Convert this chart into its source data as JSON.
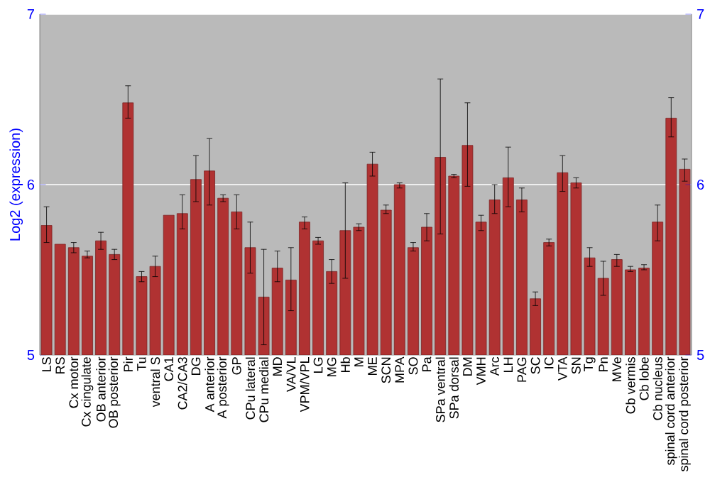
{
  "chart_data": {
    "type": "bar",
    "ylabel": "Log2 (expression)",
    "color": "#b03232",
    "grid": "y",
    "categories": [
      "LS",
      "RS",
      "Cx motor",
      "Cx cingulate",
      "OB anterior",
      "OB posterior",
      "Pir",
      "Tu",
      "ventral S",
      "CA1",
      "CA2/CA3",
      "DG",
      "A anterior",
      "A posterior",
      "GP",
      "CPu lateral",
      "CPu medial",
      "MD",
      "VA/VL",
      "VPM/VPL",
      "LG",
      "MG",
      "Hb",
      "M",
      "ME",
      "SCN",
      "MPA",
      "SO",
      "Pa",
      "SPa ventral",
      "SPa dorsal",
      "DM",
      "VMH",
      "Arc",
      "LH",
      "PAG",
      "SC",
      "IC",
      "VTA",
      "SN",
      "Tg",
      "Pn",
      "MVe",
      "Cb vermis",
      "Cb lobe",
      "Cb nucleus",
      "spinal cord anterior",
      "spinal cord posterior"
    ],
    "values": [
      5.76,
      5.65,
      5.63,
      5.58,
      5.67,
      5.59,
      6.48,
      5.46,
      5.52,
      5.82,
      5.83,
      6.03,
      6.08,
      5.92,
      5.84,
      5.63,
      5.34,
      5.51,
      5.44,
      5.78,
      5.67,
      5.49,
      5.73,
      5.75,
      6.12,
      5.85,
      6.0,
      5.63,
      5.75,
      6.16,
      6.05,
      6.23,
      5.78,
      5.91,
      6.04,
      5.91,
      5.33,
      5.66,
      6.07,
      6.01,
      5.57,
      5.45,
      5.56,
      5.5,
      5.51,
      5.78,
      6.39,
      6.09
    ],
    "errors": [
      [
        5.66,
        5.87
      ],
      null,
      [
        5.6,
        5.66
      ],
      [
        5.57,
        5.61
      ],
      [
        5.62,
        5.72
      ],
      [
        5.56,
        5.62
      ],
      [
        6.39,
        6.58
      ],
      [
        5.43,
        5.49
      ],
      [
        5.46,
        5.58
      ],
      null,
      [
        5.74,
        5.94
      ],
      [
        5.9,
        6.17
      ],
      [
        5.88,
        6.27
      ],
      [
        5.9,
        5.94
      ],
      [
        5.74,
        5.94
      ],
      [
        5.48,
        5.78
      ],
      [
        5.06,
        5.62
      ],
      [
        5.43,
        5.61
      ],
      [
        5.26,
        5.63
      ],
      [
        5.74,
        5.81
      ],
      [
        5.65,
        5.69
      ],
      [
        5.42,
        5.56
      ],
      [
        5.45,
        6.01
      ],
      [
        5.73,
        5.77
      ],
      [
        6.05,
        6.19
      ],
      [
        5.83,
        5.88
      ],
      [
        5.98,
        6.01
      ],
      [
        5.61,
        5.66
      ],
      [
        5.67,
        5.83
      ],
      [
        5.71,
        6.62
      ],
      [
        6.04,
        6.06
      ],
      [
        5.99,
        6.48
      ],
      [
        5.73,
        5.82
      ],
      [
        5.83,
        6.0
      ],
      [
        5.87,
        6.22
      ],
      [
        5.84,
        5.98
      ],
      [
        5.29,
        5.37
      ],
      [
        5.64,
        5.68
      ],
      [
        5.96,
        6.17
      ],
      [
        5.98,
        6.04
      ],
      [
        5.52,
        5.63
      ],
      [
        5.35,
        5.55
      ],
      [
        5.52,
        5.59
      ],
      [
        5.49,
        5.52
      ],
      [
        5.5,
        5.53
      ],
      [
        5.67,
        5.88
      ],
      [
        6.28,
        6.51
      ],
      [
        6.02,
        6.15
      ]
    ],
    "ylim": [
      5,
      7
    ],
    "yticks": [
      5,
      6,
      7
    ],
    "y2lim": [
      5,
      7
    ],
    "y2ticks": [
      5,
      6,
      7
    ]
  }
}
